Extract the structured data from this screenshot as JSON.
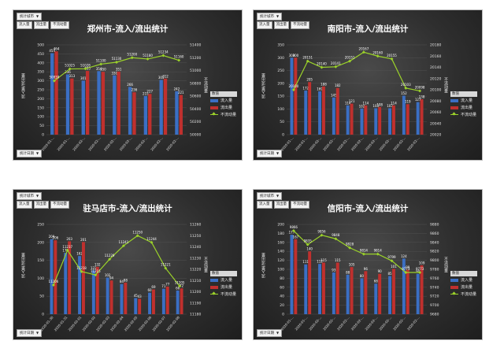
{
  "ui": {
    "filter_label": "统计城市",
    "axis_label": "统计日期",
    "field_buttons": [
      "流入量",
      "流出量",
      "不流动量"
    ],
    "legend_header": "数值",
    "y_left_label": "流入量/流出量",
    "y_right_label": "不流动量"
  },
  "colors": {
    "inflow": "#3b6fc4",
    "outflow": "#c0302e",
    "static": "#9bd22a",
    "background": "#2d2d2d"
  },
  "chart_data": [
    {
      "type": "bar",
      "title": "郑州市-流入/流出统计",
      "categories": [
        "2020-01-...",
        "2020-01-...",
        "2020-02-...",
        "2020-02-...",
        "2020-02-...",
        "2020-02-...",
        "2020-02-...",
        "2020-02-...",
        "2020-02-..."
      ],
      "series": [
        {
          "name": "流入量",
          "values": [
            454,
            336,
            301,
            354,
            330,
            266,
            215,
            305,
            242
          ]
        },
        {
          "name": "流出量",
          "values": [
            464,
            313,
            355,
            350,
            351,
            236,
            227,
            312,
            221
          ]
        }
      ],
      "line_series": {
        "name": "不流动量",
        "values": [
          50839,
          51025,
          51028,
          51100,
          51130,
          51200,
          51180,
          51234,
          51160
        ]
      },
      "ylim": [
        0,
        500
      ],
      "yticks": [
        0,
        50,
        100,
        150,
        200,
        250,
        300,
        350,
        400,
        450,
        500
      ],
      "y2lim": [
        50000,
        51400
      ],
      "y2ticks": [
        50000,
        50200,
        50400,
        50600,
        50800,
        51000,
        51200,
        51400
      ]
    },
    {
      "type": "bar",
      "title": "南阳市-流入/流出统计",
      "categories": [
        "2020-01-...",
        "2020-01-...",
        "2020-02-...",
        "2020-02-...",
        "2020-02-...",
        "2020-02-...",
        "2020-02-...",
        "2020-02-...",
        "2020-02-...",
        "2020-02-..."
      ],
      "series": [
        {
          "name": "流入量",
          "values": [
            300,
            172,
            169,
            145,
            114,
            102,
            103,
            103,
            152,
            127
          ]
        },
        {
          "name": "流出量",
          "values": [
            300,
            205,
            188,
            182,
            121,
            114,
            108,
            114,
            119,
            138
          ]
        }
      ],
      "line_series": {
        "name": "不流动量",
        "values": [
          20100,
          20151,
          20140,
          20141,
          20151,
          20167,
          20160,
          20155,
          20103,
          20098
        ]
      },
      "ylim": [
        0,
        350
      ],
      "yticks": [
        0,
        50,
        100,
        150,
        200,
        250,
        300,
        350
      ],
      "y2lim": [
        20020,
        20180
      ],
      "y2ticks": [
        20020,
        20040,
        20060,
        20080,
        20100,
        20120,
        20140,
        20160,
        20180
      ]
    },
    {
      "type": "bar",
      "title": "驻马店市-流入/流出统计",
      "categories": [
        "2020-01-30",
        "2020-01-31",
        "2020-02-01",
        "2020-02-02",
        "2020-02-03",
        "2020-02-04",
        "2020-02-05",
        "2020-02-06",
        "2020-02-07",
        "2020-02-08"
      ],
      "series": [
        {
          "name": "流入量",
          "values": [
            209,
            171,
            162,
            122,
            102,
            84,
            45,
            60,
            71,
            66
          ]
        },
        {
          "name": "流出量",
          "values": [
            206,
            203,
            201,
            132,
            94,
            88,
            43,
            69,
            77,
            72
          ]
        }
      ],
      "line_series": {
        "name": "不流动量",
        "values": [
          11206,
          11237,
          11218,
          11215,
          11229,
          11241,
          11250,
          11244,
          11221,
          11205
        ]
      },
      "ylim": [
        0,
        250
      ],
      "yticks": [
        0,
        50,
        100,
        150,
        200,
        250
      ],
      "y2lim": [
        11180,
        11260
      ],
      "y2ticks": [
        11180,
        11190,
        11200,
        11210,
        11220,
        11230,
        11240,
        11250,
        11260
      ]
    },
    {
      "type": "bar",
      "title": "信阳市-流入/流出统计",
      "categories": [
        "2020-01-...",
        "2020-01-...",
        "2020-02-...",
        "2020-02-...",
        "2020-02-...",
        "2020-02-...",
        "2020-02-...",
        "2020-02-...",
        "2020-02-...",
        "2020-02-..."
      ],
      "series": [
        {
          "name": "流入量",
          "values": [
            177,
            111,
            112,
            93,
            88,
            80,
            68,
            85,
            124,
            90
          ]
        },
        {
          "name": "流出量",
          "values": [
            167,
            140,
            115,
            115,
            105,
            96,
            90,
            101,
            99,
            109
          ]
        }
      ],
      "line_series": {
        "name": "不流动量",
        "values": [
          9866,
          9835,
          9856,
          9848,
          9828,
          9814,
          9814,
          9799,
          9773,
          9773
        ]
      },
      "ylim": [
        0,
        200
      ],
      "yticks": [
        0,
        20,
        40,
        60,
        80,
        100,
        120,
        140,
        160,
        180,
        200
      ],
      "y2lim": [
        9680,
        9880
      ],
      "y2ticks": [
        9680,
        9700,
        9720,
        9740,
        9760,
        9780,
        9800,
        9820,
        9840,
        9860,
        9880
      ]
    }
  ]
}
